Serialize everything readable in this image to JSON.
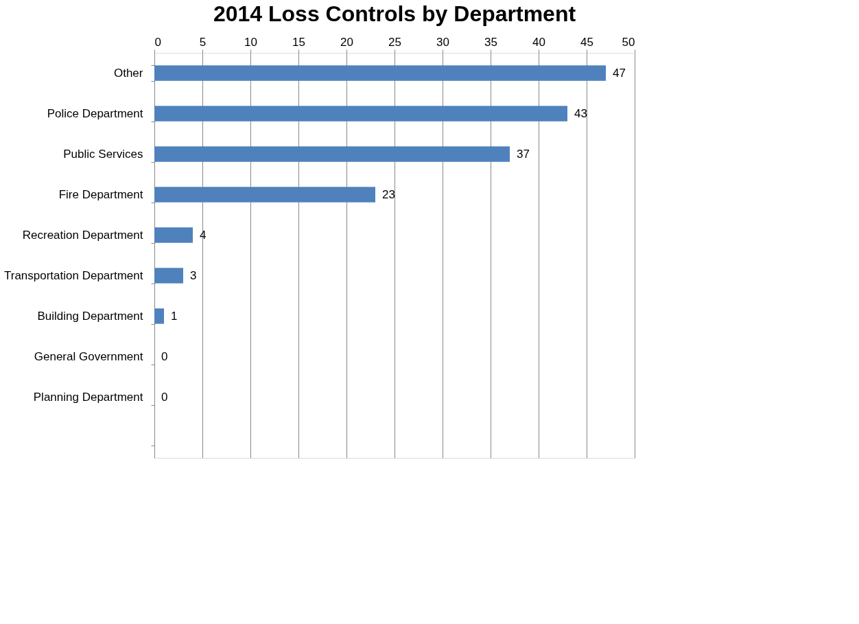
{
  "chart_data": {
    "type": "bar",
    "orientation": "horizontal",
    "title": "2014 Loss Controls by Department",
    "categories": [
      "Other",
      "Police Department",
      "Public Services",
      "Fire Department",
      "Recreation Department",
      "Transportation Department",
      "Building Department",
      "General Government",
      "Planning Department",
      null
    ],
    "values": [
      47,
      43,
      37,
      23,
      4,
      3,
      1,
      0,
      0,
      null
    ],
    "color": "#4f81bd",
    "xlim": [
      0,
      50
    ],
    "xticks": [
      0,
      5,
      10,
      15,
      20,
      25,
      30,
      35,
      40,
      45,
      50
    ],
    "grid": "x",
    "data_labels": true
  }
}
